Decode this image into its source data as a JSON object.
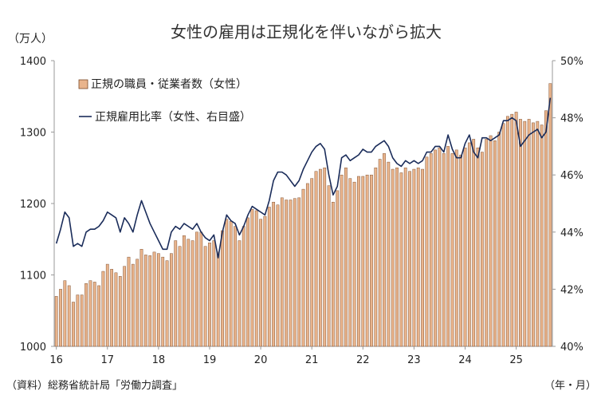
{
  "chart_data": {
    "type": "bar+line",
    "title": "女性の雇用は正規化を伴いながら拡大",
    "left_unit": "（万人）",
    "x_unit": "（年・月）",
    "source": "（資料）総務省統計局「労働力調査」",
    "left_axis": {
      "min": 1000,
      "max": 1400,
      "ticks": [
        "1000",
        "1100",
        "1200",
        "1300",
        "1400"
      ]
    },
    "right_axis": {
      "min": 40,
      "max": 50,
      "ticks": [
        "40%",
        "42%",
        "44%",
        "46%",
        "48%",
        "50%"
      ]
    },
    "x_tick_labels": [
      "16",
      "17",
      "18",
      "19",
      "20",
      "21",
      "22",
      "23",
      "24",
      "25"
    ],
    "start": "2016-01",
    "legend": {
      "bar_label": "正規の職員・従業者数（女性）",
      "line_label": "正規雇用比率（女性、右目盛）"
    },
    "colors": {
      "bar_fill": "#e9b48c",
      "bar_stroke": "#7a4a2a",
      "line": "#1a2c5a",
      "axis": "#999999"
    },
    "series": [
      {
        "name": "正規の職員・従業者数（女性）",
        "axis": "left",
        "kind": "bar",
        "values": [
          1070,
          1080,
          1092,
          1085,
          1062,
          1072,
          1072,
          1088,
          1092,
          1090,
          1085,
          1105,
          1115,
          1108,
          1103,
          1098,
          1112,
          1125,
          1115,
          1122,
          1136,
          1128,
          1127,
          1132,
          1130,
          1125,
          1120,
          1130,
          1148,
          1140,
          1155,
          1150,
          1148,
          1160,
          1160,
          1140,
          1145,
          1148,
          1132,
          1162,
          1178,
          1175,
          1168,
          1148,
          1168,
          1180,
          1192,
          1190,
          1178,
          1182,
          1195,
          1202,
          1198,
          1208,
          1205,
          1205,
          1207,
          1208,
          1220,
          1228,
          1235,
          1245,
          1248,
          1250,
          1225,
          1202,
          1218,
          1240,
          1250,
          1235,
          1230,
          1238,
          1238,
          1240,
          1240,
          1250,
          1262,
          1270,
          1258,
          1248,
          1250,
          1243,
          1250,
          1245,
          1248,
          1250,
          1248,
          1265,
          1270,
          1275,
          1278,
          1270,
          1280,
          1270,
          1275,
          1268,
          1278,
          1285,
          1290,
          1278,
          1272,
          1290,
          1295,
          1288,
          1300,
          1312,
          1322,
          1325,
          1328,
          1318,
          1315,
          1318,
          1313,
          1315,
          1310,
          1330,
          1368
        ]
      },
      {
        "name": "正規雇用比率（女性、右目盛）",
        "axis": "right",
        "kind": "line",
        "values": [
          43.6,
          44.1,
          44.7,
          44.5,
          43.5,
          43.6,
          43.5,
          44.0,
          44.1,
          44.1,
          44.2,
          44.4,
          44.7,
          44.6,
          44.5,
          44.0,
          44.5,
          44.3,
          44.0,
          44.6,
          45.1,
          44.7,
          44.3,
          44.0,
          43.7,
          43.4,
          43.4,
          44.0,
          44.2,
          44.1,
          44.3,
          44.2,
          44.1,
          44.3,
          44.0,
          43.8,
          43.7,
          43.9,
          43.1,
          44.0,
          44.6,
          44.4,
          44.3,
          43.9,
          44.2,
          44.6,
          44.9,
          44.8,
          44.7,
          44.6,
          45.1,
          45.8,
          46.1,
          46.1,
          46.0,
          45.8,
          45.6,
          45.8,
          46.2,
          46.5,
          46.8,
          47.0,
          47.1,
          46.9,
          46.0,
          45.3,
          45.6,
          46.6,
          46.7,
          46.5,
          46.6,
          46.7,
          46.9,
          46.8,
          46.8,
          47.0,
          47.1,
          47.2,
          47.0,
          46.6,
          46.4,
          46.3,
          46.5,
          46.4,
          46.5,
          46.4,
          46.5,
          46.8,
          46.8,
          47.0,
          47.0,
          46.8,
          47.4,
          46.9,
          46.6,
          46.6,
          47.1,
          47.4,
          46.8,
          46.6,
          47.3,
          47.3,
          47.2,
          47.3,
          47.4,
          47.9,
          47.9,
          48.0,
          47.9,
          47.0,
          47.2,
          47.4,
          47.5,
          47.6,
          47.3,
          47.5,
          48.7
        ]
      }
    ]
  }
}
